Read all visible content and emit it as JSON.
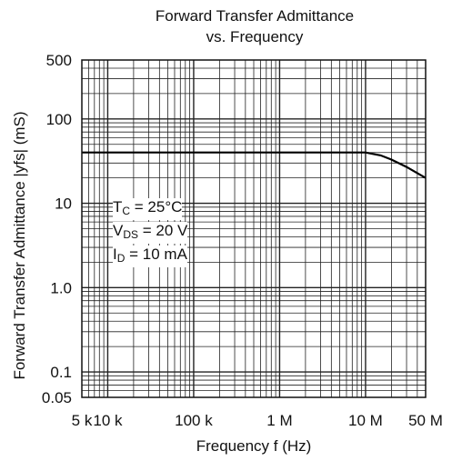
{
  "chart_data": {
    "type": "line",
    "title_line1": "Forward Transfer Admittance",
    "title_line2": "vs. Frequency",
    "xlabel": "Frequency  f  (Hz)",
    "ylabel": "Forward Transfer Admittance  |yfs|  (mS)",
    "x_scale": "log",
    "y_scale": "log",
    "xlim": [
      5000,
      50000000
    ],
    "ylim": [
      0.05,
      500
    ],
    "grid": true,
    "x_ticks": [
      {
        "value": 5000,
        "label": "5 k"
      },
      {
        "value": 10000,
        "label": "10 k"
      },
      {
        "value": 100000,
        "label": "100 k"
      },
      {
        "value": 1000000,
        "label": "1 M"
      },
      {
        "value": 10000000,
        "label": "10 M"
      },
      {
        "value": 50000000,
        "label": "50 M"
      }
    ],
    "y_ticks": [
      {
        "value": 0.05,
        "label": "0.05"
      },
      {
        "value": 0.1,
        "label": "0.1"
      },
      {
        "value": 1,
        "label": "1.0"
      },
      {
        "value": 10,
        "label": "10"
      },
      {
        "value": 100,
        "label": "100"
      },
      {
        "value": 500,
        "label": "500"
      }
    ],
    "conditions": {
      "tc_label": "T",
      "tc_sub": "C",
      "tc_value": " = 25°C",
      "vds_label": "V",
      "vds_sub": "DS",
      "vds_value": " = 20 V",
      "id_label": "I",
      "id_sub": "D",
      "id_value": " = 10 mA"
    },
    "series": [
      {
        "x": [
          5000,
          100000,
          1000000,
          10000000,
          15000000,
          20000000,
          30000000,
          50000000
        ],
        "y": [
          40,
          40,
          40,
          40,
          37,
          33,
          27,
          20
        ]
      }
    ]
  }
}
